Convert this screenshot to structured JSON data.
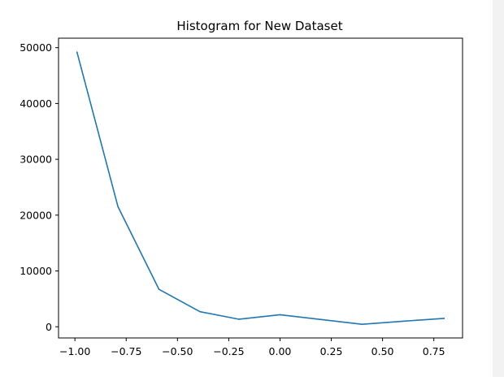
{
  "chart_data": {
    "type": "line",
    "title": "Histogram for New Dataset",
    "xlabel": "",
    "ylabel": "",
    "x": [
      -0.99,
      -0.79,
      -0.59,
      -0.39,
      -0.2,
      0.0,
      0.2,
      0.4,
      0.6,
      0.8
    ],
    "series": [
      {
        "values": [
          49200,
          21500,
          6700,
          2700,
          1350,
          2150,
          1300,
          450,
          1000,
          1500
        ],
        "color": "#1f77b4"
      }
    ],
    "xlim": [
      -1.08,
      0.89
    ],
    "ylim": [
      -2000,
      51700
    ],
    "xticks": [
      -1.0,
      -0.75,
      -0.5,
      -0.25,
      0.0,
      0.25,
      0.5,
      0.75
    ],
    "xtick_labels": [
      "−1.00",
      "−0.75",
      "−0.50",
      "−0.25",
      "0.00",
      "0.25",
      "0.50",
      "0.75"
    ],
    "yticks": [
      0,
      10000,
      20000,
      30000,
      40000,
      50000
    ],
    "ytick_labels": [
      "0",
      "10000",
      "20000",
      "30000",
      "40000",
      "50000"
    ],
    "grid": false,
    "legend": "none"
  }
}
